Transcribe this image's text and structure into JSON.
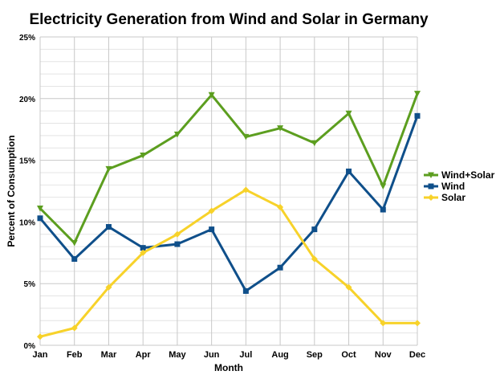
{
  "chart_data": {
    "type": "line",
    "title": "Electricity Generation from Wind and Solar in Germany",
    "xlabel": "Month",
    "ylabel": "Percent of Consumption",
    "categories": [
      "Jan",
      "Feb",
      "Mar",
      "Apr",
      "May",
      "Jun",
      "Jul",
      "Aug",
      "Sep",
      "Oct",
      "Nov",
      "Dec"
    ],
    "ylim": [
      0,
      25
    ],
    "yticks": [
      "0%",
      "5%",
      "10%",
      "15%",
      "20%",
      "25%"
    ],
    "grid": true,
    "legend_position": "right",
    "series": [
      {
        "name": "Wind+Solar",
        "color": "#5c9e1f",
        "marker": "triangle-down",
        "values": [
          11.1,
          8.3,
          14.3,
          15.4,
          17.1,
          20.3,
          16.9,
          17.6,
          16.4,
          18.8,
          12.9,
          20.4
        ]
      },
      {
        "name": "Wind",
        "color": "#0f4f8a",
        "marker": "square",
        "values": [
          10.3,
          7.0,
          9.6,
          7.9,
          8.2,
          9.4,
          4.4,
          6.3,
          9.4,
          14.1,
          11.0,
          18.6
        ]
      },
      {
        "name": "Solar",
        "color": "#f7d22a",
        "marker": "diamond",
        "values": [
          0.7,
          1.4,
          4.7,
          7.5,
          9.0,
          10.9,
          12.6,
          11.2,
          7.0,
          4.7,
          1.8,
          1.8
        ]
      }
    ]
  }
}
